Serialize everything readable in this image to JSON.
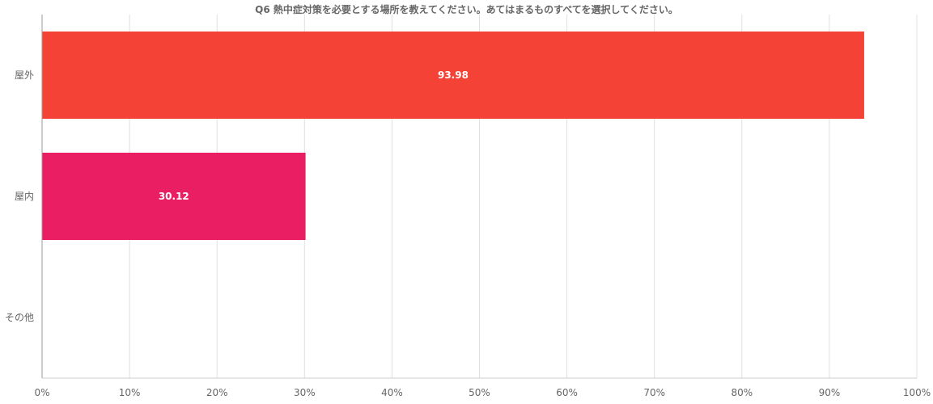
{
  "chart_data": {
    "type": "bar",
    "orientation": "horizontal",
    "title": "Q6 熱中症対策を必要とする場所を教えてください。あてはまるものすべてを選択してください。",
    "categories": [
      "屋外",
      "屋内",
      "その他"
    ],
    "values": [
      93.98,
      30.12,
      0
    ],
    "data_labels": [
      "93.98",
      "30.12",
      ""
    ],
    "bar_colors": [
      "#f44336",
      "#e91e63",
      "#9c27b0"
    ],
    "xlim": [
      0,
      100
    ],
    "x_ticks": [
      "0%",
      "10%",
      "20%",
      "30%",
      "40%",
      "50%",
      "60%",
      "70%",
      "80%",
      "90%",
      "100%"
    ],
    "xlabel": "",
    "ylabel": "",
    "grid": true,
    "legend": "none"
  }
}
